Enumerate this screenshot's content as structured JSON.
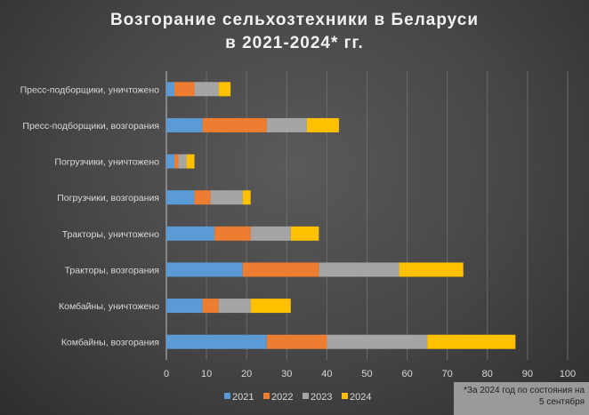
{
  "chart_data": {
    "type": "bar",
    "orientation": "horizontal",
    "stacked": true,
    "title_line1": "Возгорание сельхозтехники в Беларуси",
    "title_line2": "в 2021-2024* гг.",
    "categories": [
      "Пресс-подборщики, уничтожено",
      "Пресс-подборщики, возгорания",
      "Погрузчики, уничтожено",
      "Погрузчики, возгорания",
      "Тракторы, уничтожено",
      "Тракторы, возгорания",
      "Комбайны, уничтожено",
      "Комбайны, возгорания"
    ],
    "series": [
      {
        "name": "2021",
        "color": "#5B9BD5",
        "values": [
          2,
          9,
          2,
          7,
          12,
          19,
          9,
          25
        ]
      },
      {
        "name": "2022",
        "color": "#ED7D31",
        "values": [
          5,
          16,
          1,
          4,
          9,
          19,
          4,
          15
        ]
      },
      {
        "name": "2023",
        "color": "#A5A5A5",
        "values": [
          6,
          10,
          2,
          8,
          10,
          20,
          8,
          25
        ]
      },
      {
        "name": "2024",
        "color": "#FFC000",
        "values": [
          3,
          8,
          2,
          2,
          7,
          16,
          10,
          22
        ]
      }
    ],
    "xlim": [
      0,
      100
    ],
    "xticks": [
      "0",
      "10",
      "20",
      "30",
      "40",
      "50",
      "60",
      "70",
      "80",
      "90",
      "100"
    ],
    "grid": true,
    "legend_position": "bottom",
    "note_line1": "*За 2024 год по состояния на",
    "note_line2": "5 сентября"
  }
}
